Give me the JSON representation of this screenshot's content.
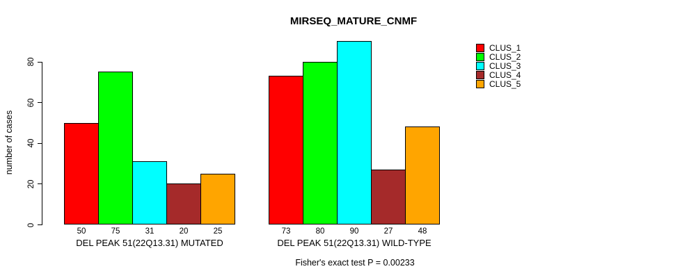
{
  "chart_data": {
    "type": "bar",
    "title": "MIRSEQ_MATURE_CNMF",
    "ylabel": "number of cases",
    "yticks": [
      0,
      20,
      40,
      60,
      80
    ],
    "ylim": [
      0,
      90
    ],
    "grid": false,
    "legend_position": "right",
    "bar_value_labels_shown": true,
    "series": [
      {
        "name": "CLUS_1",
        "color": "#FF0000"
      },
      {
        "name": "CLUS_2",
        "color": "#00FF00"
      },
      {
        "name": "CLUS_3",
        "color": "#00FFFF"
      },
      {
        "name": "CLUS_4",
        "color": "#A52A2A"
      },
      {
        "name": "CLUS_5",
        "color": "#FFA500"
      }
    ],
    "groups": [
      {
        "label": "DEL PEAK 51(22Q13.31) MUTATED",
        "values": [
          50,
          75,
          31,
          20,
          25
        ]
      },
      {
        "label": "DEL PEAK 51(22Q13.31) WILD-TYPE",
        "values": [
          73,
          80,
          90,
          27,
          48
        ]
      }
    ],
    "footnote": "Fisher's exact test P = 0.00233"
  }
}
